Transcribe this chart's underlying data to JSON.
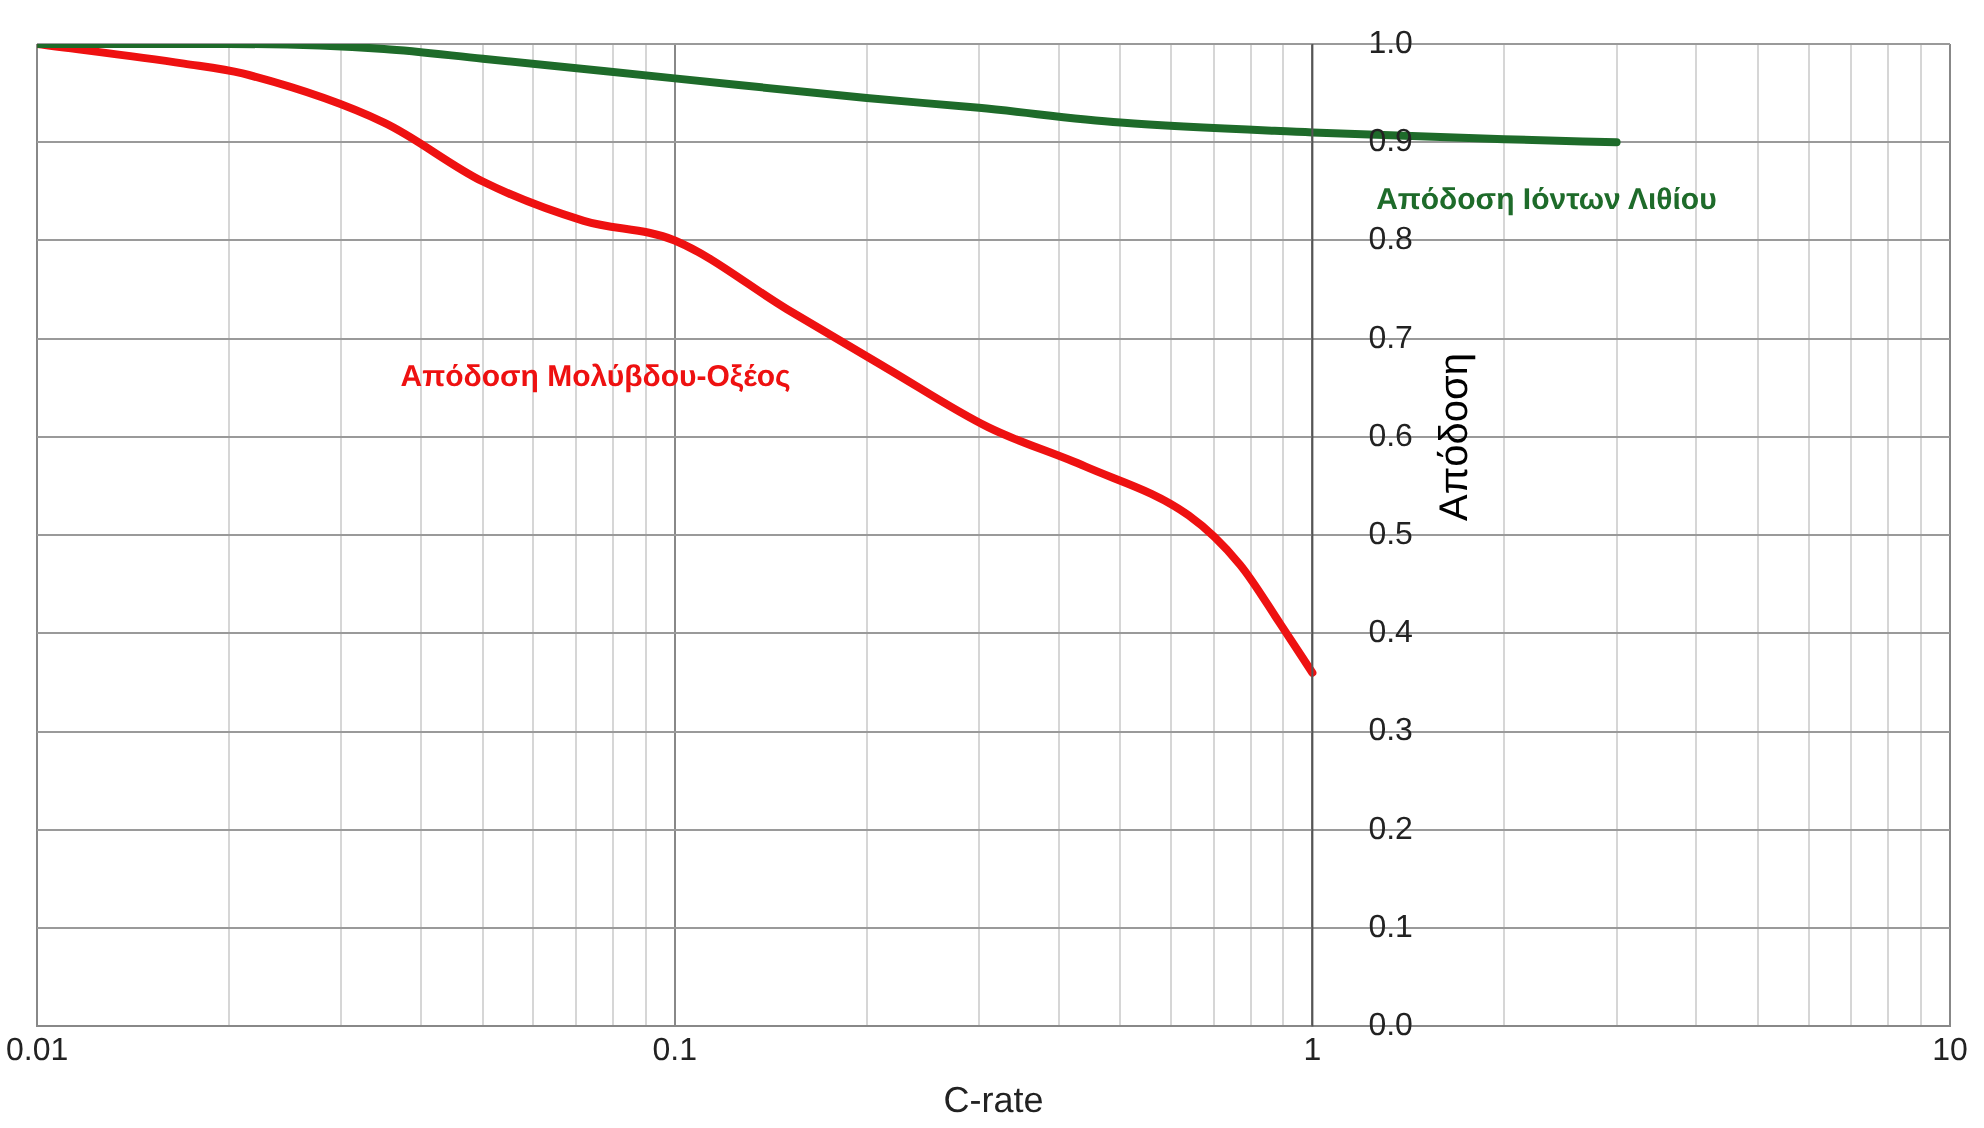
{
  "chart_data": {
    "type": "line",
    "xlabel": "C-rate",
    "ylabel": "Απόδοση",
    "log": "x",
    "legend": false,
    "grid": true,
    "xlim": [
      0.01,
      10
    ],
    "xticks": [
      0.01,
      {
        "value": 0.02,
        "label": null
      },
      {
        "value": 0.03,
        "label": null
      },
      {
        "value": 0.04,
        "label": null
      },
      {
        "value": 0.05,
        "label": null
      },
      {
        "value": 0.06,
        "label": null
      },
      {
        "value": 0.07,
        "label": null
      },
      {
        "value": 0.08,
        "label": null
      },
      {
        "value": 0.09,
        "label": null
      },
      0.1,
      {
        "value": 0.2,
        "label": null
      },
      {
        "value": 0.3,
        "label": null
      },
      {
        "value": 0.4,
        "label": null
      },
      {
        "value": 0.5,
        "label": null
      },
      {
        "value": 0.6,
        "label": null
      },
      {
        "value": 0.7,
        "label": null
      },
      {
        "value": 0.8,
        "label": null
      },
      {
        "value": 0.9,
        "label": null
      },
      1,
      {
        "value": 2,
        "label": null
      },
      {
        "value": 3,
        "label": null
      },
      {
        "value": 4,
        "label": null
      },
      {
        "value": 5,
        "label": null
      },
      {
        "value": 6,
        "label": null
      },
      {
        "value": 7,
        "label": null
      },
      {
        "value": 8,
        "label": null
      },
      {
        "value": 9,
        "label": null
      },
      10
    ],
    "ylim": [
      0,
      1
    ],
    "yticks": [
      {
        "value": 0,
        "label": "0.0"
      },
      0.1,
      0.2,
      0.3,
      0.4,
      0.5,
      0.6,
      0.7,
      0.8,
      0.9,
      {
        "value": 1,
        "label": "1.0"
      }
    ],
    "series": [
      {
        "name": "Απόδοση Ιόντων Λιθίου",
        "color": "#1e6b2a",
        "x": [
          0.01,
          0.02,
          0.035,
          0.05,
          0.1,
          0.2,
          0.3,
          0.5,
          1,
          2,
          3
        ],
        "values": [
          1.0,
          1.0,
          0.995,
          0.985,
          0.965,
          0.945,
          0.935,
          0.92,
          0.91,
          0.903,
          0.9
        ]
      },
      {
        "name": "Απόδοση Μολύβδου-Οξέος",
        "color": "#ee1111",
        "x": [
          0.01,
          0.017,
          0.021,
          0.035,
          0.05,
          0.072,
          0.1,
          0.15,
          0.215,
          0.31,
          0.44,
          0.64,
          0.77,
          0.89,
          1
        ],
        "values": [
          1.0,
          0.98,
          0.97,
          0.92,
          0.86,
          0.82,
          0.8,
          0.73,
          0.67,
          0.61,
          0.57,
          0.52,
          0.47,
          0.41,
          0.36
        ]
      }
    ]
  }
}
